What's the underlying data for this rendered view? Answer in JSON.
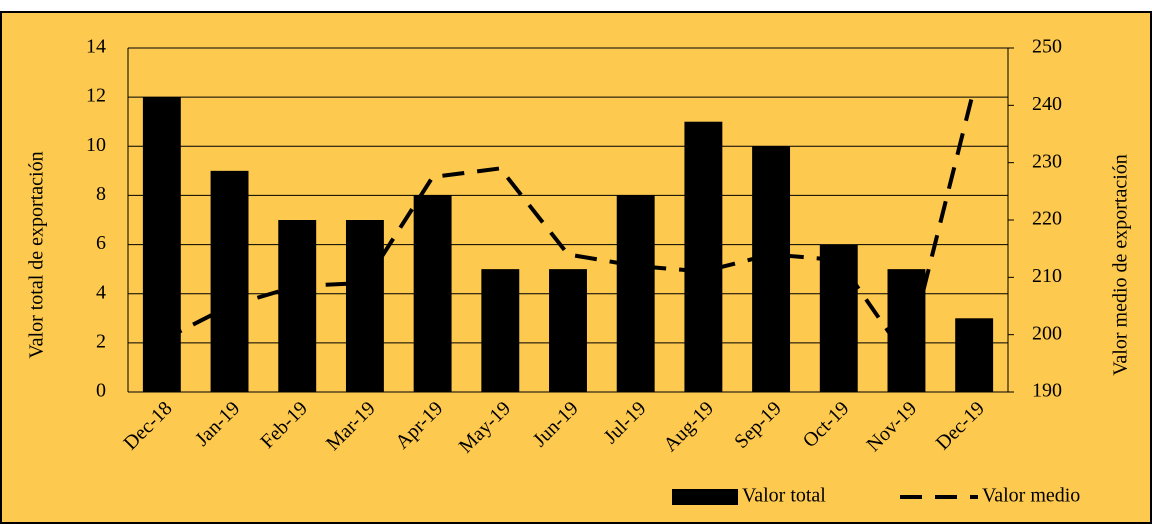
{
  "chart_data": {
    "type": "bar",
    "categories": [
      "Dec-18",
      "Jan-19",
      "Feb-19",
      "Mar-19",
      "Apr-19",
      "May-19",
      "Jun-19",
      "Jul-19",
      "Aug-19",
      "Sep-19",
      "Oct-19",
      "Nov-19",
      "Dec-19"
    ],
    "series": [
      {
        "name": "Valor total",
        "type": "bar",
        "color": "#000000",
        "values": [
          12,
          9,
          7,
          7,
          8,
          5,
          5,
          8,
          11,
          10,
          6,
          5,
          3
        ]
      },
      {
        "name": "Valor medio",
        "type": "line",
        "color": "#000000",
        "axis": "y2",
        "values": [
          199,
          205,
          208.5,
          209,
          227.5,
          229,
          214,
          212,
          211,
          214,
          213,
          196,
          243
        ]
      }
    ],
    "ylabel": "Valor total de exportación",
    "y2label": "Valor medio de exportación",
    "ylim": [
      0,
      14
    ],
    "yticks": [
      0,
      2,
      4,
      6,
      8,
      10,
      12,
      14
    ],
    "y2lim": [
      190,
      250
    ],
    "y2ticks": [
      190,
      200,
      210,
      220,
      230,
      240,
      250
    ],
    "grid": true,
    "legend": "bottom-right",
    "background": "#FDC94F"
  }
}
